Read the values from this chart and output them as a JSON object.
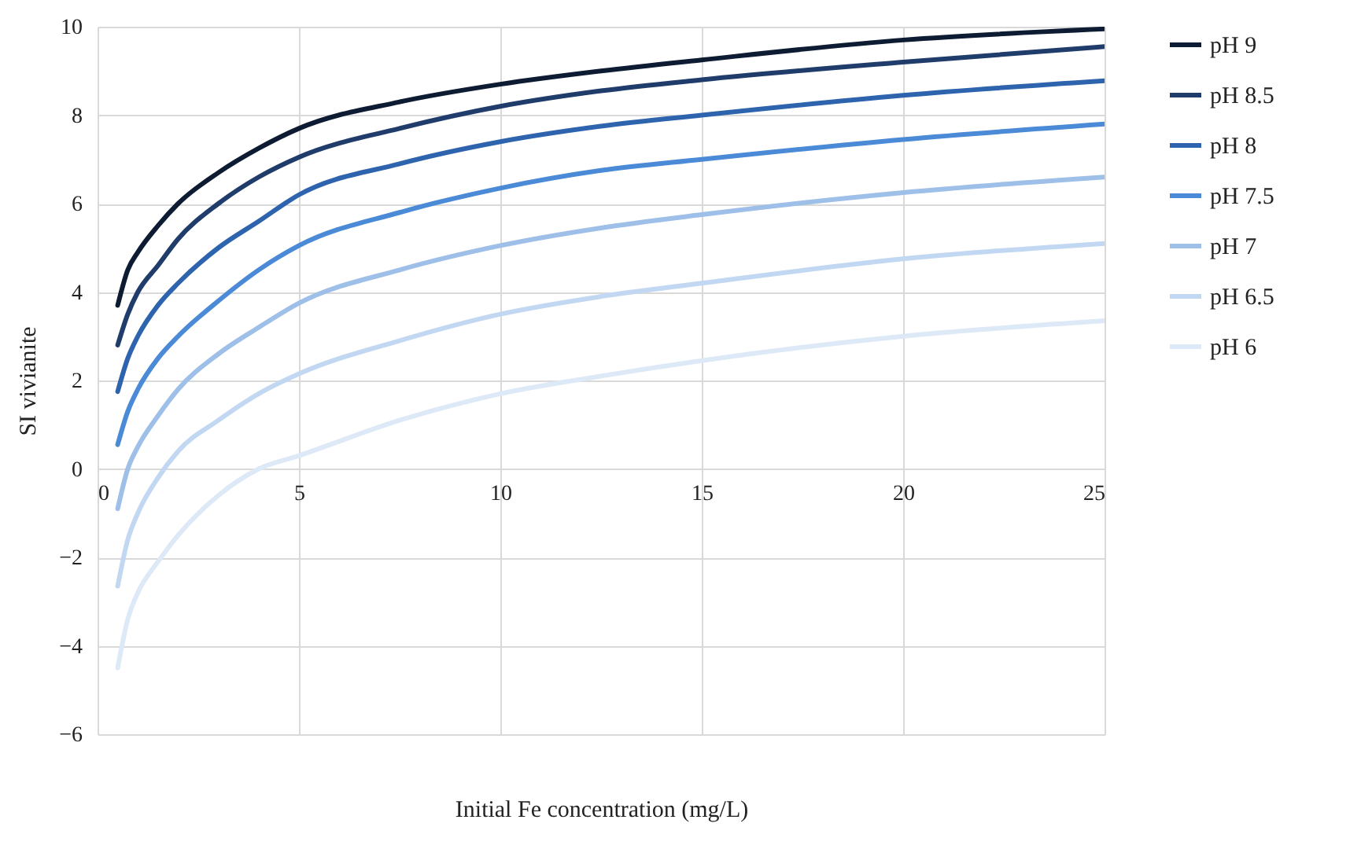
{
  "chart_data": {
    "type": "line",
    "xlabel": "Initial Fe concentration (mg/L)",
    "ylabel": "SI vivianite",
    "x": [
      0.5,
      0.75,
      1,
      1.5,
      2,
      3,
      4,
      5,
      7.5,
      10,
      12.5,
      15,
      20,
      25
    ],
    "series": [
      {
        "name": "pH 9",
        "color": "#0d1b33",
        "values": [
          3.7,
          4.5,
          4.9,
          5.5,
          6.0,
          6.7,
          7.25,
          7.7,
          8.3,
          8.7,
          9.0,
          9.25,
          9.7,
          9.95
        ]
      },
      {
        "name": "pH 8.5",
        "color": "#1f3c6b",
        "values": [
          2.8,
          3.5,
          4.0,
          4.6,
          5.2,
          6.0,
          6.6,
          7.05,
          7.7,
          8.2,
          8.55,
          8.8,
          9.2,
          9.55
        ]
      },
      {
        "name": "pH 8",
        "color": "#2e64ad",
        "values": [
          1.75,
          2.5,
          3.0,
          3.7,
          4.2,
          5.0,
          5.6,
          6.2,
          6.9,
          7.4,
          7.75,
          8.0,
          8.45,
          8.78
        ]
      },
      {
        "name": "pH 7.5",
        "color": "#4a8ad6",
        "values": [
          0.55,
          1.3,
          1.8,
          2.5,
          3.0,
          3.8,
          4.5,
          5.05,
          5.8,
          6.35,
          6.75,
          7.0,
          7.45,
          7.8
        ]
      },
      {
        "name": "pH 7",
        "color": "#9dbfe8",
        "values": [
          -0.9,
          0.0,
          0.5,
          1.2,
          1.8,
          2.6,
          3.2,
          3.75,
          4.5,
          5.05,
          5.45,
          5.75,
          6.25,
          6.6
        ]
      },
      {
        "name": "pH 6.5",
        "color": "#c2d8f2",
        "values": [
          -2.65,
          -1.6,
          -1.0,
          -0.2,
          0.4,
          1.1,
          1.7,
          2.15,
          2.9,
          3.5,
          3.9,
          4.2,
          4.75,
          5.1
        ]
      },
      {
        "name": "pH 6",
        "color": "#dde9f7",
        "values": [
          -4.5,
          -3.4,
          -2.8,
          -2.1,
          -1.5,
          -0.6,
          0.0,
          0.3,
          1.1,
          1.7,
          2.1,
          2.45,
          3.0,
          3.35
        ]
      }
    ],
    "xlim": [
      0,
      25
    ],
    "xticks": [
      0,
      5,
      10,
      15,
      20,
      25
    ],
    "ylim": [
      -6,
      10
    ],
    "yticks": [
      -6,
      -4,
      -2,
      0,
      2,
      4,
      6,
      8,
      10
    ],
    "grid": true,
    "legend": "right",
    "marker": "none",
    "line_style": "solid"
  }
}
